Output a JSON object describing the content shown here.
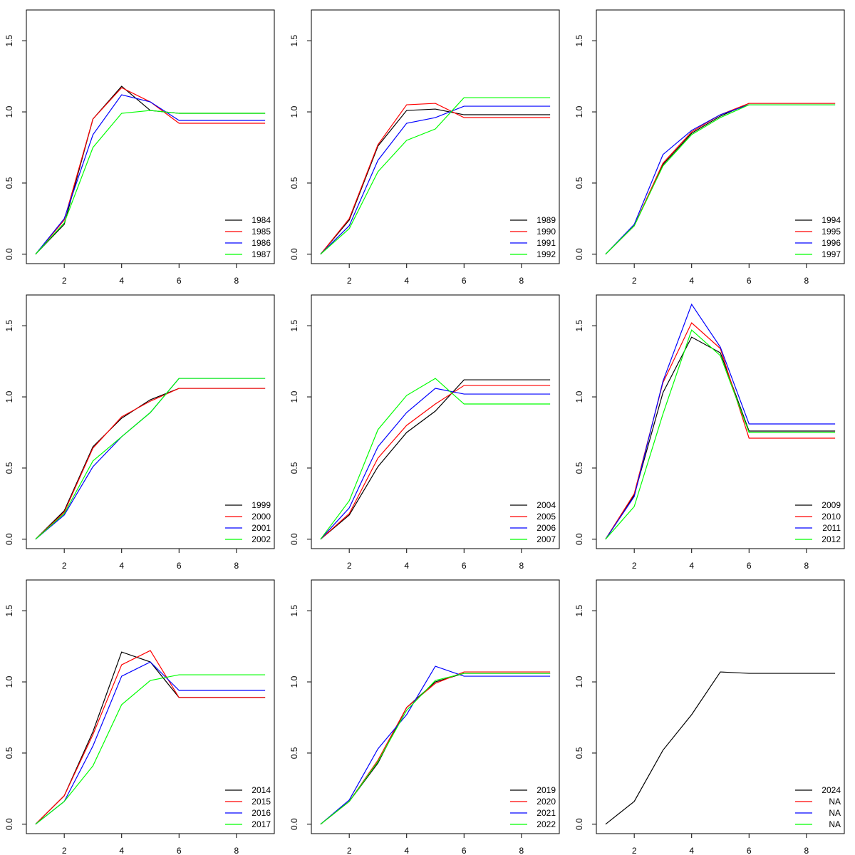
{
  "chart_data": [
    {
      "type": "line",
      "x": [
        1,
        2,
        3,
        4,
        5,
        6,
        7,
        8,
        9
      ],
      "xlim": [
        0.68,
        9.32
      ],
      "ylim": [
        -0.066,
        1.716
      ],
      "xticks": [
        2,
        4,
        6,
        8
      ],
      "yticks": [
        {
          "value": 0,
          "label": "0.0"
        },
        {
          "value": 0.5,
          "label": "0.5"
        },
        {
          "value": 1,
          "label": "1.0"
        },
        {
          "value": 1.5,
          "label": "1.5"
        }
      ],
      "legend": "bottomright",
      "series": [
        {
          "name": "1984",
          "color": "#000000",
          "values": [
            0,
            0.21,
            0.95,
            1.18,
            1.01,
            0.99,
            0.99,
            0.99,
            0.99
          ]
        },
        {
          "name": "1985",
          "color": "#ff0000",
          "values": [
            0,
            0.24,
            0.95,
            1.17,
            1.07,
            0.92,
            0.92,
            0.92,
            0.92
          ]
        },
        {
          "name": "1986",
          "color": "#0000ff",
          "values": [
            0,
            0.25,
            0.84,
            1.12,
            1.07,
            0.94,
            0.94,
            0.94,
            0.94
          ]
        },
        {
          "name": "1987",
          "color": "#00ff00",
          "values": [
            0,
            0.22,
            0.75,
            0.99,
            1.01,
            0.99,
            0.99,
            0.99,
            0.99
          ]
        }
      ]
    },
    {
      "type": "line",
      "x": [
        1,
        2,
        3,
        4,
        5,
        6,
        7,
        8,
        9
      ],
      "xlim": [
        0.68,
        9.32
      ],
      "ylim": [
        -0.066,
        1.716
      ],
      "xticks": [
        2,
        4,
        6,
        8
      ],
      "yticks": [
        {
          "value": 0,
          "label": "0.0"
        },
        {
          "value": 0.5,
          "label": "0.5"
        },
        {
          "value": 1,
          "label": "1.0"
        },
        {
          "value": 1.5,
          "label": "1.5"
        }
      ],
      "legend": "bottomright",
      "series": [
        {
          "name": "1989",
          "color": "#000000",
          "values": [
            0,
            0.24,
            0.76,
            1.01,
            1.02,
            0.98,
            0.98,
            0.98,
            0.98
          ]
        },
        {
          "name": "1990",
          "color": "#ff0000",
          "values": [
            0,
            0.25,
            0.77,
            1.05,
            1.06,
            0.96,
            0.96,
            0.96,
            0.96
          ]
        },
        {
          "name": "1991",
          "color": "#0000ff",
          "values": [
            0,
            0.2,
            0.66,
            0.92,
            0.96,
            1.04,
            1.04,
            1.04,
            1.04
          ]
        },
        {
          "name": "1992",
          "color": "#00ff00",
          "values": [
            0,
            0.18,
            0.58,
            0.8,
            0.88,
            1.1,
            1.1,
            1.1,
            1.1
          ]
        }
      ]
    },
    {
      "type": "line",
      "x": [
        1,
        2,
        3,
        4,
        5,
        6,
        7,
        8,
        9
      ],
      "xlim": [
        0.68,
        9.32
      ],
      "ylim": [
        -0.066,
        1.716
      ],
      "xticks": [
        2,
        4,
        6,
        8
      ],
      "yticks": [
        {
          "value": 0,
          "label": "0.0"
        },
        {
          "value": 0.5,
          "label": "0.5"
        },
        {
          "value": 1,
          "label": "1.0"
        },
        {
          "value": 1.5,
          "label": "1.5"
        }
      ],
      "legend": "bottomright",
      "series": [
        {
          "name": "1994",
          "color": "#000000",
          "values": [
            0,
            0.2,
            0.63,
            0.85,
            0.97,
            1.06,
            1.06,
            1.06,
            1.06
          ]
        },
        {
          "name": "1995",
          "color": "#ff0000",
          "values": [
            0,
            0.2,
            0.64,
            0.86,
            0.98,
            1.06,
            1.06,
            1.06,
            1.06
          ]
        },
        {
          "name": "1996",
          "color": "#0000ff",
          "values": [
            0,
            0.21,
            0.7,
            0.87,
            0.98,
            1.05,
            1.05,
            1.05,
            1.05
          ]
        },
        {
          "name": "1997",
          "color": "#00ff00",
          "values": [
            0,
            0.2,
            0.62,
            0.84,
            0.96,
            1.05,
            1.05,
            1.05,
            1.05
          ]
        }
      ]
    },
    {
      "type": "line",
      "x": [
        1,
        2,
        3,
        4,
        5,
        6,
        7,
        8,
        9
      ],
      "xlim": [
        0.68,
        9.32
      ],
      "ylim": [
        -0.066,
        1.716
      ],
      "xticks": [
        2,
        4,
        6,
        8
      ],
      "yticks": [
        {
          "value": 0,
          "label": "0.0"
        },
        {
          "value": 0.5,
          "label": "0.5"
        },
        {
          "value": 1,
          "label": "1.0"
        },
        {
          "value": 1.5,
          "label": "1.5"
        }
      ],
      "legend": "bottomright",
      "series": [
        {
          "name": "1999",
          "color": "#000000",
          "values": [
            0,
            0.2,
            0.65,
            0.85,
            0.98,
            1.06,
            1.06,
            1.06,
            1.06
          ]
        },
        {
          "name": "2000",
          "color": "#ff0000",
          "values": [
            0,
            0.19,
            0.64,
            0.86,
            0.97,
            1.06,
            1.06,
            1.06,
            1.06
          ]
        },
        {
          "name": "2001",
          "color": "#0000ff",
          "values": [
            0,
            0.17,
            0.51,
            0.72,
            0.89,
            1.13,
            1.13,
            1.13,
            1.13
          ]
        },
        {
          "name": "2002",
          "color": "#00ff00",
          "values": [
            0,
            0.18,
            0.55,
            0.72,
            0.89,
            1.13,
            1.13,
            1.13,
            1.13
          ]
        }
      ]
    },
    {
      "type": "line",
      "x": [
        1,
        2,
        3,
        4,
        5,
        6,
        7,
        8,
        9
      ],
      "xlim": [
        0.68,
        9.32
      ],
      "ylim": [
        -0.066,
        1.716
      ],
      "xticks": [
        2,
        4,
        6,
        8
      ],
      "yticks": [
        {
          "value": 0,
          "label": "0.0"
        },
        {
          "value": 0.5,
          "label": "0.5"
        },
        {
          "value": 1,
          "label": "1.0"
        },
        {
          "value": 1.5,
          "label": "1.5"
        }
      ],
      "legend": "bottomright",
      "series": [
        {
          "name": "2004",
          "color": "#000000",
          "values": [
            0,
            0.17,
            0.51,
            0.75,
            0.9,
            1.12,
            1.12,
            1.12,
            1.12
          ]
        },
        {
          "name": "2005",
          "color": "#ff0000",
          "values": [
            0,
            0.18,
            0.57,
            0.8,
            0.95,
            1.08,
            1.08,
            1.08,
            1.08
          ]
        },
        {
          "name": "2006",
          "color": "#0000ff",
          "values": [
            0,
            0.22,
            0.65,
            0.89,
            1.06,
            1.02,
            1.02,
            1.02,
            1.02
          ]
        },
        {
          "name": "2007",
          "color": "#00ff00",
          "values": [
            0,
            0.27,
            0.77,
            1.01,
            1.13,
            0.95,
            0.95,
            0.95,
            0.95
          ]
        }
      ]
    },
    {
      "type": "line",
      "x": [
        1,
        2,
        3,
        4,
        5,
        6,
        7,
        8,
        9
      ],
      "xlim": [
        0.68,
        9.32
      ],
      "ylim": [
        -0.066,
        1.716
      ],
      "xticks": [
        2,
        4,
        6,
        8
      ],
      "yticks": [
        {
          "value": 0,
          "label": "0.0"
        },
        {
          "value": 0.5,
          "label": "0.5"
        },
        {
          "value": 1,
          "label": "1.0"
        },
        {
          "value": 1.5,
          "label": "1.5"
        }
      ],
      "legend": "bottomright",
      "series": [
        {
          "name": "2009",
          "color": "#000000",
          "values": [
            0,
            0.31,
            1.03,
            1.42,
            1.31,
            0.76,
            0.76,
            0.76,
            0.76
          ]
        },
        {
          "name": "2010",
          "color": "#ff0000",
          "values": [
            0,
            0.32,
            1.1,
            1.52,
            1.34,
            0.71,
            0.71,
            0.71,
            0.71
          ]
        },
        {
          "name": "2011",
          "color": "#0000ff",
          "values": [
            0,
            0.3,
            1.11,
            1.65,
            1.35,
            0.81,
            0.81,
            0.81,
            0.81
          ]
        },
        {
          "name": "2012",
          "color": "#00ff00",
          "values": [
            0,
            0.23,
            0.88,
            1.47,
            1.29,
            0.75,
            0.75,
            0.75,
            0.75
          ]
        }
      ]
    },
    {
      "type": "line",
      "x": [
        1,
        2,
        3,
        4,
        5,
        6,
        7,
        8,
        9
      ],
      "xlim": [
        0.68,
        9.32
      ],
      "ylim": [
        -0.066,
        1.716
      ],
      "xticks": [
        2,
        4,
        6,
        8
      ],
      "yticks": [
        {
          "value": 0,
          "label": "0.0"
        },
        {
          "value": 0.5,
          "label": "0.5"
        },
        {
          "value": 1,
          "label": "1.0"
        },
        {
          "value": 1.5,
          "label": "1.5"
        }
      ],
      "legend": "bottomright",
      "series": [
        {
          "name": "2014",
          "color": "#000000",
          "values": [
            0,
            0.2,
            0.65,
            1.21,
            1.14,
            0.89,
            0.89,
            0.89,
            0.89
          ]
        },
        {
          "name": "2015",
          "color": "#ff0000",
          "values": [
            0,
            0.2,
            0.63,
            1.12,
            1.22,
            0.89,
            0.89,
            0.89,
            0.89
          ]
        },
        {
          "name": "2016",
          "color": "#0000ff",
          "values": [
            0,
            0.16,
            0.55,
            1.04,
            1.14,
            0.94,
            0.94,
            0.94,
            0.94
          ]
        },
        {
          "name": "2017",
          "color": "#00ff00",
          "values": [
            0,
            0.16,
            0.41,
            0.84,
            1.01,
            1.05,
            1.05,
            1.05,
            1.05
          ]
        }
      ]
    },
    {
      "type": "line",
      "x": [
        1,
        2,
        3,
        4,
        5,
        6,
        7,
        8,
        9
      ],
      "xlim": [
        0.68,
        9.32
      ],
      "ylim": [
        -0.066,
        1.716
      ],
      "xticks": [
        2,
        4,
        6,
        8
      ],
      "yticks": [
        {
          "value": 0,
          "label": "0.0"
        },
        {
          "value": 0.5,
          "label": "0.5"
        },
        {
          "value": 1,
          "label": "1.0"
        },
        {
          "value": 1.5,
          "label": "1.5"
        }
      ],
      "legend": "bottomright",
      "series": [
        {
          "name": "2019",
          "color": "#000000",
          "values": [
            0,
            0.16,
            0.43,
            0.82,
            1.0,
            1.06,
            1.06,
            1.06,
            1.06
          ]
        },
        {
          "name": "2020",
          "color": "#ff0000",
          "values": [
            0,
            0.16,
            0.45,
            0.82,
            0.99,
            1.07,
            1.07,
            1.07,
            1.07
          ]
        },
        {
          "name": "2021",
          "color": "#0000ff",
          "values": [
            0,
            0.17,
            0.53,
            0.77,
            1.11,
            1.04,
            1.04,
            1.04,
            1.04
          ]
        },
        {
          "name": "2022",
          "color": "#00ff00",
          "values": [
            0,
            0.16,
            0.44,
            0.8,
            1.01,
            1.06,
            1.06,
            1.06,
            1.06
          ]
        }
      ]
    },
    {
      "type": "line",
      "x": [
        1,
        2,
        3,
        4,
        5,
        6,
        7,
        8,
        9
      ],
      "xlim": [
        0.68,
        9.32
      ],
      "ylim": [
        -0.066,
        1.716
      ],
      "xticks": [
        2,
        4,
        6,
        8
      ],
      "yticks": [
        {
          "value": 0,
          "label": "0.0"
        },
        {
          "value": 0.5,
          "label": "0.5"
        },
        {
          "value": 1,
          "label": "1.0"
        },
        {
          "value": 1.5,
          "label": "1.5"
        }
      ],
      "legend": "bottomright",
      "series": [
        {
          "name": "2024",
          "color": "#000000",
          "values": [
            0,
            0.16,
            0.52,
            0.77,
            1.07,
            1.06,
            1.06,
            1.06,
            1.06
          ]
        },
        {
          "name": "NA",
          "color": "#ff0000",
          "values": [
            null,
            null,
            null,
            null,
            null,
            null,
            null,
            null,
            null
          ]
        },
        {
          "name": "NA",
          "color": "#0000ff",
          "values": [
            null,
            null,
            null,
            null,
            null,
            null,
            null,
            null,
            null
          ]
        },
        {
          "name": "NA",
          "color": "#00ff00",
          "values": [
            null,
            null,
            null,
            null,
            null,
            null,
            null,
            null,
            null
          ]
        }
      ]
    }
  ]
}
